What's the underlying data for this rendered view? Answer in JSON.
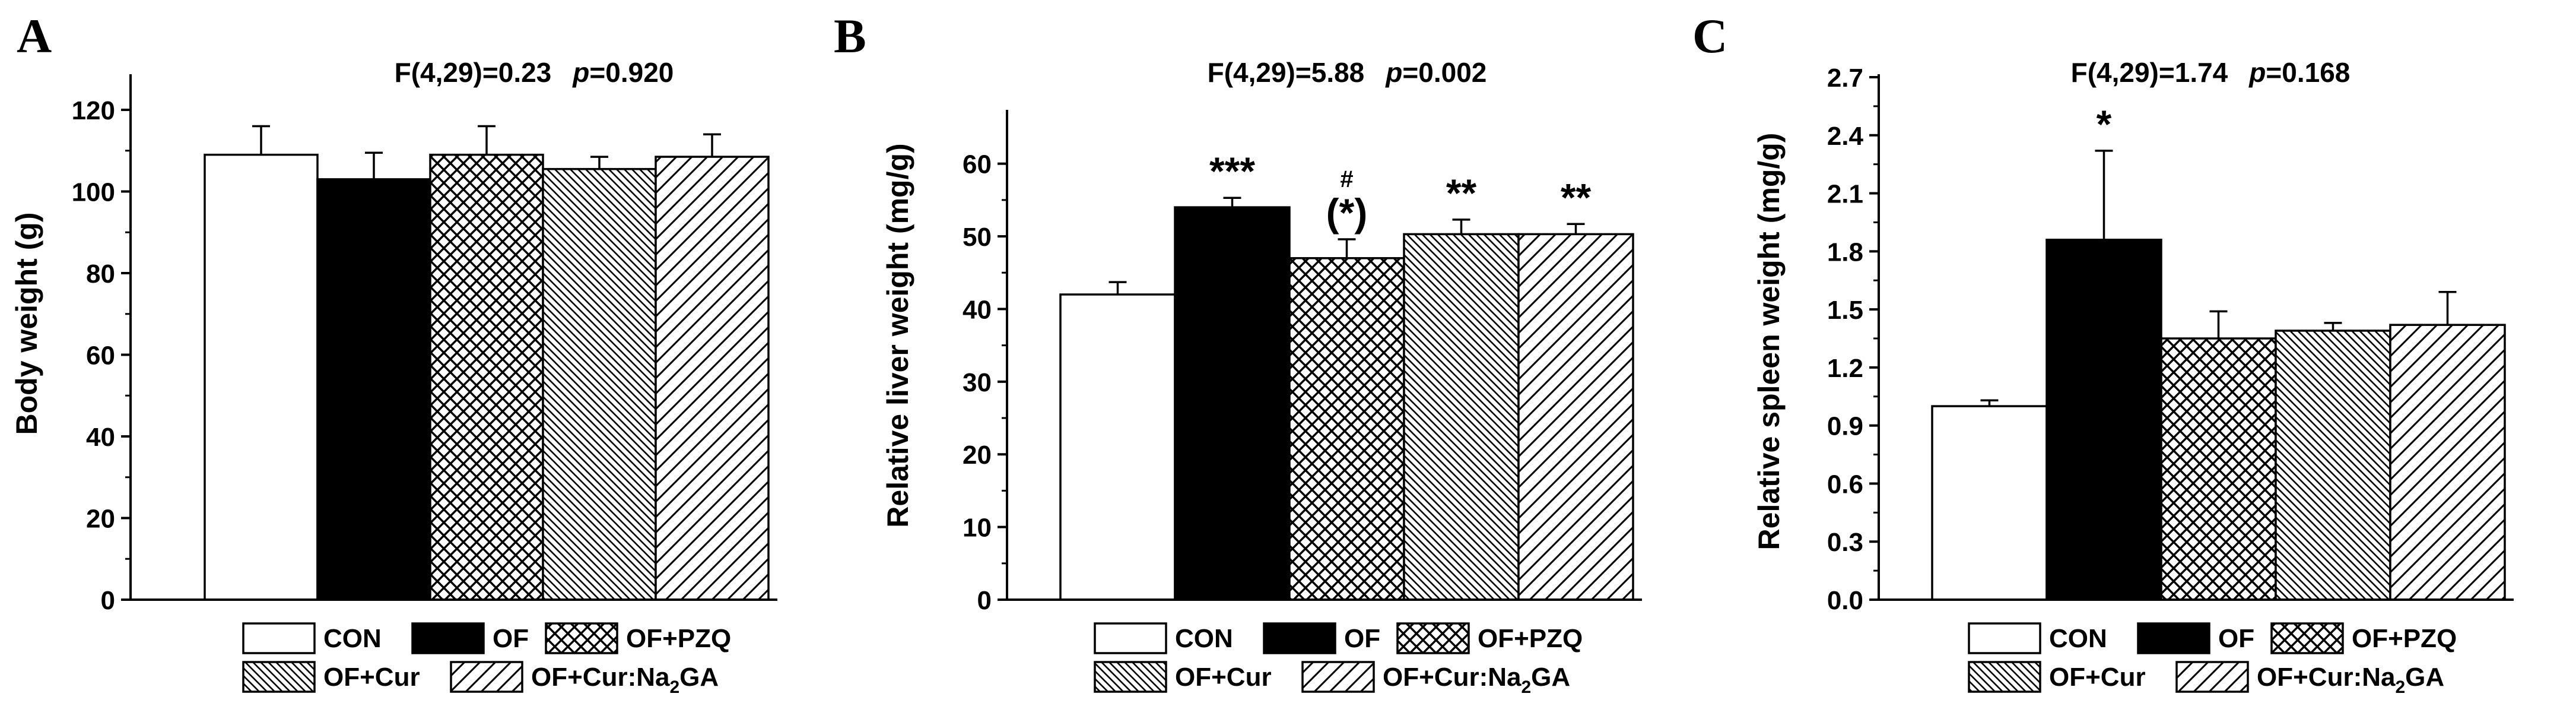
{
  "chart_data": [
    {
      "type": "bar",
      "panel_label": "A",
      "stat_parts": [
        "F(4,29)=0.23",
        "p",
        "=0.920"
      ],
      "ylabel": "Body weight (g)",
      "ylim": [
        0,
        128
      ],
      "yticks": [
        0,
        20,
        40,
        60,
        80,
        100,
        120
      ],
      "categories": [
        "CON",
        "OF",
        "OF+PZQ",
        "OF+Cur",
        "OF+Cur:Na2GA"
      ],
      "values": [
        109,
        103,
        109,
        105.5,
        108.5
      ],
      "errors": [
        7,
        6.5,
        7,
        3,
        5.5
      ],
      "annotations": [
        "",
        "",
        "",
        "",
        ""
      ],
      "annotations_extra": [
        "",
        "",
        "",
        "",
        ""
      ]
    },
    {
      "type": "bar",
      "panel_label": "B",
      "stat_parts": [
        "F(4,29)=5.88",
        "p",
        "=0.002"
      ],
      "ylabel": "Relative liver weight (mg/g)",
      "ylim": [
        0,
        67
      ],
      "yticks": [
        0,
        10,
        20,
        30,
        40,
        50,
        60
      ],
      "categories": [
        "CON",
        "OF",
        "OF+PZQ",
        "OF+Cur",
        "OF+Cur:Na2GA"
      ],
      "values": [
        42,
        54,
        47,
        50.3,
        50.3
      ],
      "errors": [
        1.7,
        1.3,
        2.6,
        2,
        1.4
      ],
      "annotations": [
        "",
        "***",
        "(*)",
        "**",
        "**"
      ],
      "annotations_extra": [
        "",
        "",
        "#",
        "",
        ""
      ]
    },
    {
      "type": "bar",
      "panel_label": "C",
      "stat_parts": [
        "F(4,29)=1.74",
        "p",
        "=0.168"
      ],
      "ylabel": "Relative spleen weight (mg/g)",
      "ylim": [
        0,
        2.7
      ],
      "yticks": [
        "0.0",
        "0.3",
        "0.6",
        "0.9",
        "1.2",
        "1.5",
        "1.8",
        "2.1",
        "2.4",
        "2.7"
      ],
      "categories": [
        "CON",
        "OF",
        "OF+PZQ",
        "OF+Cur",
        "OF+Cur:Na2GA"
      ],
      "values": [
        1.0,
        1.86,
        1.35,
        1.39,
        1.42
      ],
      "errors": [
        0.03,
        0.46,
        0.14,
        0.04,
        0.17
      ],
      "annotations": [
        "",
        "*",
        "",
        "",
        ""
      ],
      "annotations_extra": [
        "",
        "",
        "",
        "",
        ""
      ]
    }
  ],
  "legend": {
    "row1": [
      "CON",
      "OF",
      "OF+PZQ"
    ],
    "row2": [
      "OF+Cur",
      "OF+Cur:Na"
    ],
    "na2ga_sub": "2",
    "na2ga_tail": "GA"
  },
  "bar_styles": [
    "white",
    "black",
    "crosshatch",
    "dense-diagonal-down",
    "wide-diagonal-up"
  ]
}
